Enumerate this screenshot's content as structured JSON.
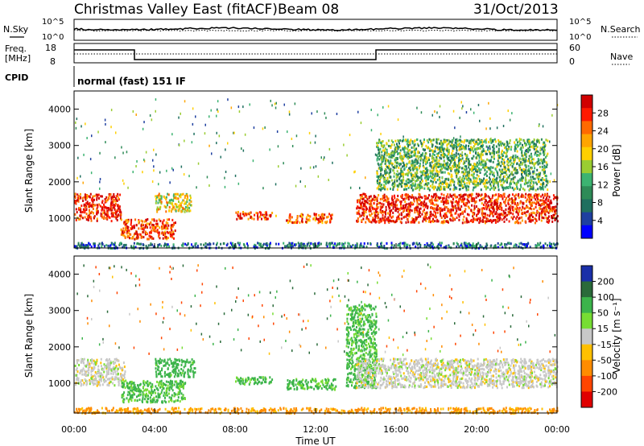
{
  "header": {
    "title": "Christmas Valley East (fitACF)",
    "beam": "Beam 08",
    "date": "31/Oct/2013"
  },
  "status_panels": {
    "noise_left_label": "N.Sky",
    "noise_right_label": "N.Search",
    "noise_ticks_left": [
      "10^5",
      "10^0"
    ],
    "noise_ticks_right": [
      "10^5",
      "10^0"
    ],
    "freq_label_line1": "Freq.",
    "freq_label_line2": "[MHz]",
    "freq_ticks": [
      "18",
      "8"
    ],
    "nave_label": "Nave",
    "nave_ticks": [
      "60",
      "0"
    ],
    "cpid_label": "CPID",
    "cpid_text": "normal (fast) 151 IF"
  },
  "axes": {
    "xlabel": "Time UT",
    "ylabel": "Slant Range [km]",
    "x_ticks": [
      "00:00",
      "04:00",
      "08:00",
      "12:00",
      "16:00",
      "20:00",
      "00:00"
    ],
    "y_ticks": [
      "1000",
      "2000",
      "3000",
      "4000"
    ]
  },
  "colorbars": {
    "power": {
      "label": "Power [dB]",
      "ticks": [
        "28",
        "24",
        "20",
        "16",
        "12",
        "8",
        "4"
      ],
      "colors": [
        "#d10000",
        "#ff1a00",
        "#ff6a00",
        "#ffa500",
        "#ffd000",
        "#9acd32",
        "#3cb371",
        "#2e8b57",
        "#1f6f5f",
        "#1e3fa0",
        "#0000ff"
      ]
    },
    "velocity": {
      "label": "Velocity [m s⁻¹]",
      "ticks": [
        "200",
        "100",
        "50",
        "15",
        "-15",
        "-50",
        "-100",
        "-200"
      ],
      "colors": [
        "#1a2fa8",
        "#2a6a3a",
        "#3cb44b",
        "#77dd33",
        "#c8c8c8",
        "#ffc000",
        "#ff8c00",
        "#ff4500",
        "#e00000"
      ]
    }
  },
  "chart_data": {
    "type": "heatmap",
    "x_range_hours": [
      0,
      24
    ],
    "y_range_km": [
      180,
      4500
    ],
    "power_panel": {
      "regions": [
        {
          "t0": 0.0,
          "t1": 2.3,
          "r0": 950,
          "r1": 1700,
          "power_db": 28
        },
        {
          "t0": 2.3,
          "t1": 5.0,
          "r0": 450,
          "r1": 1000,
          "power_db": 26
        },
        {
          "t0": 4.0,
          "t1": 5.8,
          "r0": 1200,
          "r1": 1700,
          "power_db": 18
        },
        {
          "t0": 8.0,
          "t1": 10.0,
          "r0": 1000,
          "r1": 1200,
          "power_db": 26
        },
        {
          "t0": 10.5,
          "t1": 12.8,
          "r0": 900,
          "r1": 1150,
          "power_db": 24
        },
        {
          "t0": 14.0,
          "t1": 24.0,
          "r0": 900,
          "r1": 1700,
          "power_db": 28
        },
        {
          "t0": 15.0,
          "t1": 23.5,
          "r0": 1800,
          "r1": 3200,
          "power_db": 12
        },
        {
          "t0": 0.0,
          "t1": 24.0,
          "r0": 200,
          "r1": 350,
          "power_db": 6
        }
      ]
    },
    "velocity_panel": {
      "regions": [
        {
          "t0": 0.0,
          "t1": 2.5,
          "r0": 950,
          "r1": 1700,
          "velocity": 0
        },
        {
          "t0": 2.3,
          "t1": 5.5,
          "r0": 500,
          "r1": 1100,
          "velocity": 40
        },
        {
          "t0": 4.0,
          "t1": 6.0,
          "r0": 1200,
          "r1": 1700,
          "velocity": 50
        },
        {
          "t0": 8.0,
          "t1": 10.0,
          "r0": 1000,
          "r1": 1200,
          "velocity": 45
        },
        {
          "t0": 10.5,
          "t1": 13.0,
          "r0": 850,
          "r1": 1150,
          "velocity": 40
        },
        {
          "t0": 13.5,
          "t1": 15.0,
          "r0": 900,
          "r1": 3200,
          "velocity": 40
        },
        {
          "t0": 14.0,
          "t1": 24.0,
          "r0": 900,
          "r1": 1700,
          "velocity": 0
        },
        {
          "t0": 0.0,
          "t1": 24.0,
          "r0": 200,
          "r1": 350,
          "velocity": -40
        }
      ]
    }
  }
}
